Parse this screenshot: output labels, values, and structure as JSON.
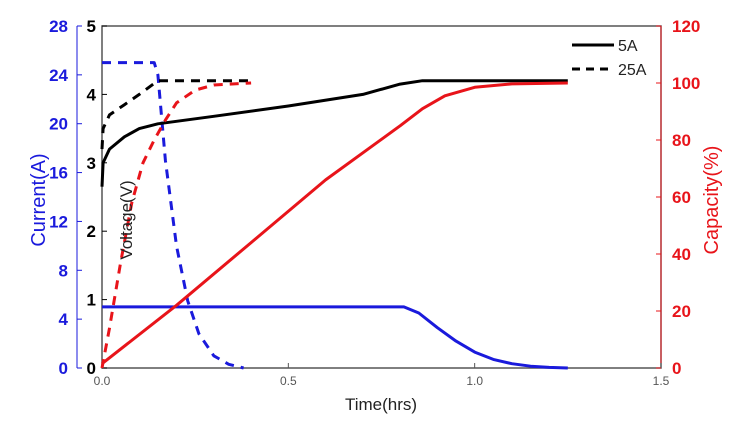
{
  "chart_data": {
    "type": "line",
    "xlabel": "Time(hrs)",
    "xlim": [
      0,
      1.5
    ],
    "xticks": [
      "0.0",
      "0.5",
      "1.0",
      "1.5"
    ],
    "axes": {
      "current": {
        "label": "Current(A)",
        "lim": [
          0,
          28
        ],
        "ticks": [
          "0",
          "4",
          "8",
          "12",
          "16",
          "20",
          "24",
          "28"
        ],
        "color": "#1a1adc"
      },
      "voltage": {
        "label": "Voltage(V)",
        "lim": [
          0,
          5
        ],
        "ticks": [
          "0",
          "1",
          "2",
          "3",
          "4",
          "5"
        ],
        "color": "#000000"
      },
      "capacity": {
        "label": "Capacity(%)",
        "lim": [
          0,
          120
        ],
        "ticks": [
          "0",
          "20",
          "40",
          "60",
          "80",
          "100",
          "120"
        ],
        "color": "#e8141a"
      }
    },
    "legend": {
      "placement": "top-right",
      "entries": [
        {
          "label": "5A",
          "style": "solid"
        },
        {
          "label": "25A",
          "style": "dashed"
        }
      ]
    },
    "series": [
      {
        "axis": "current",
        "style": "solid",
        "color": "#1a1adc",
        "x": [
          0,
          0.81,
          0.85,
          0.9,
          0.95,
          1.0,
          1.05,
          1.1,
          1.15,
          1.2,
          1.25
        ],
        "y": [
          5,
          5,
          4.5,
          3.3,
          2.2,
          1.3,
          0.7,
          0.35,
          0.15,
          0.05,
          0
        ]
      },
      {
        "axis": "current",
        "style": "dashed",
        "color": "#1a1adc",
        "x": [
          0,
          0.14,
          0.15,
          0.17,
          0.2,
          0.23,
          0.26,
          0.3,
          0.34,
          0.38
        ],
        "y": [
          25,
          25,
          24,
          17,
          10,
          5.5,
          2.8,
          1,
          0.3,
          0
        ]
      },
      {
        "axis": "voltage",
        "style": "solid",
        "color": "#000000",
        "x": [
          0,
          0.003,
          0.02,
          0.06,
          0.1,
          0.15,
          0.3,
          0.5,
          0.7,
          0.8,
          0.86,
          1.0,
          1.25
        ],
        "y": [
          2.65,
          3.0,
          3.2,
          3.38,
          3.5,
          3.57,
          3.68,
          3.83,
          4.0,
          4.15,
          4.2,
          4.2,
          4.2
        ]
      },
      {
        "axis": "voltage",
        "style": "dashed",
        "color": "#000000",
        "x": [
          0,
          0.003,
          0.02,
          0.06,
          0.1,
          0.15,
          0.25,
          0.4
        ],
        "y": [
          3.2,
          3.5,
          3.7,
          3.85,
          4.0,
          4.2,
          4.2,
          4.2
        ]
      },
      {
        "axis": "capacity",
        "style": "solid",
        "color": "#e8141a",
        "x": [
          0,
          0.2,
          0.4,
          0.6,
          0.8,
          0.86,
          0.92,
          1.0,
          1.1,
          1.25
        ],
        "y": [
          1.5,
          22,
          44,
          66,
          85,
          91,
          95.5,
          98.5,
          99.7,
          100
        ]
      },
      {
        "axis": "capacity",
        "style": "dashed",
        "color": "#e8141a",
        "x": [
          0,
          0.02,
          0.05,
          0.08,
          0.11,
          0.14,
          0.17,
          0.2,
          0.25,
          0.3,
          0.4
        ],
        "y": [
          0,
          14,
          37,
          58,
          72,
          80,
          87,
          93,
          97.5,
          99.3,
          100
        ]
      }
    ]
  }
}
